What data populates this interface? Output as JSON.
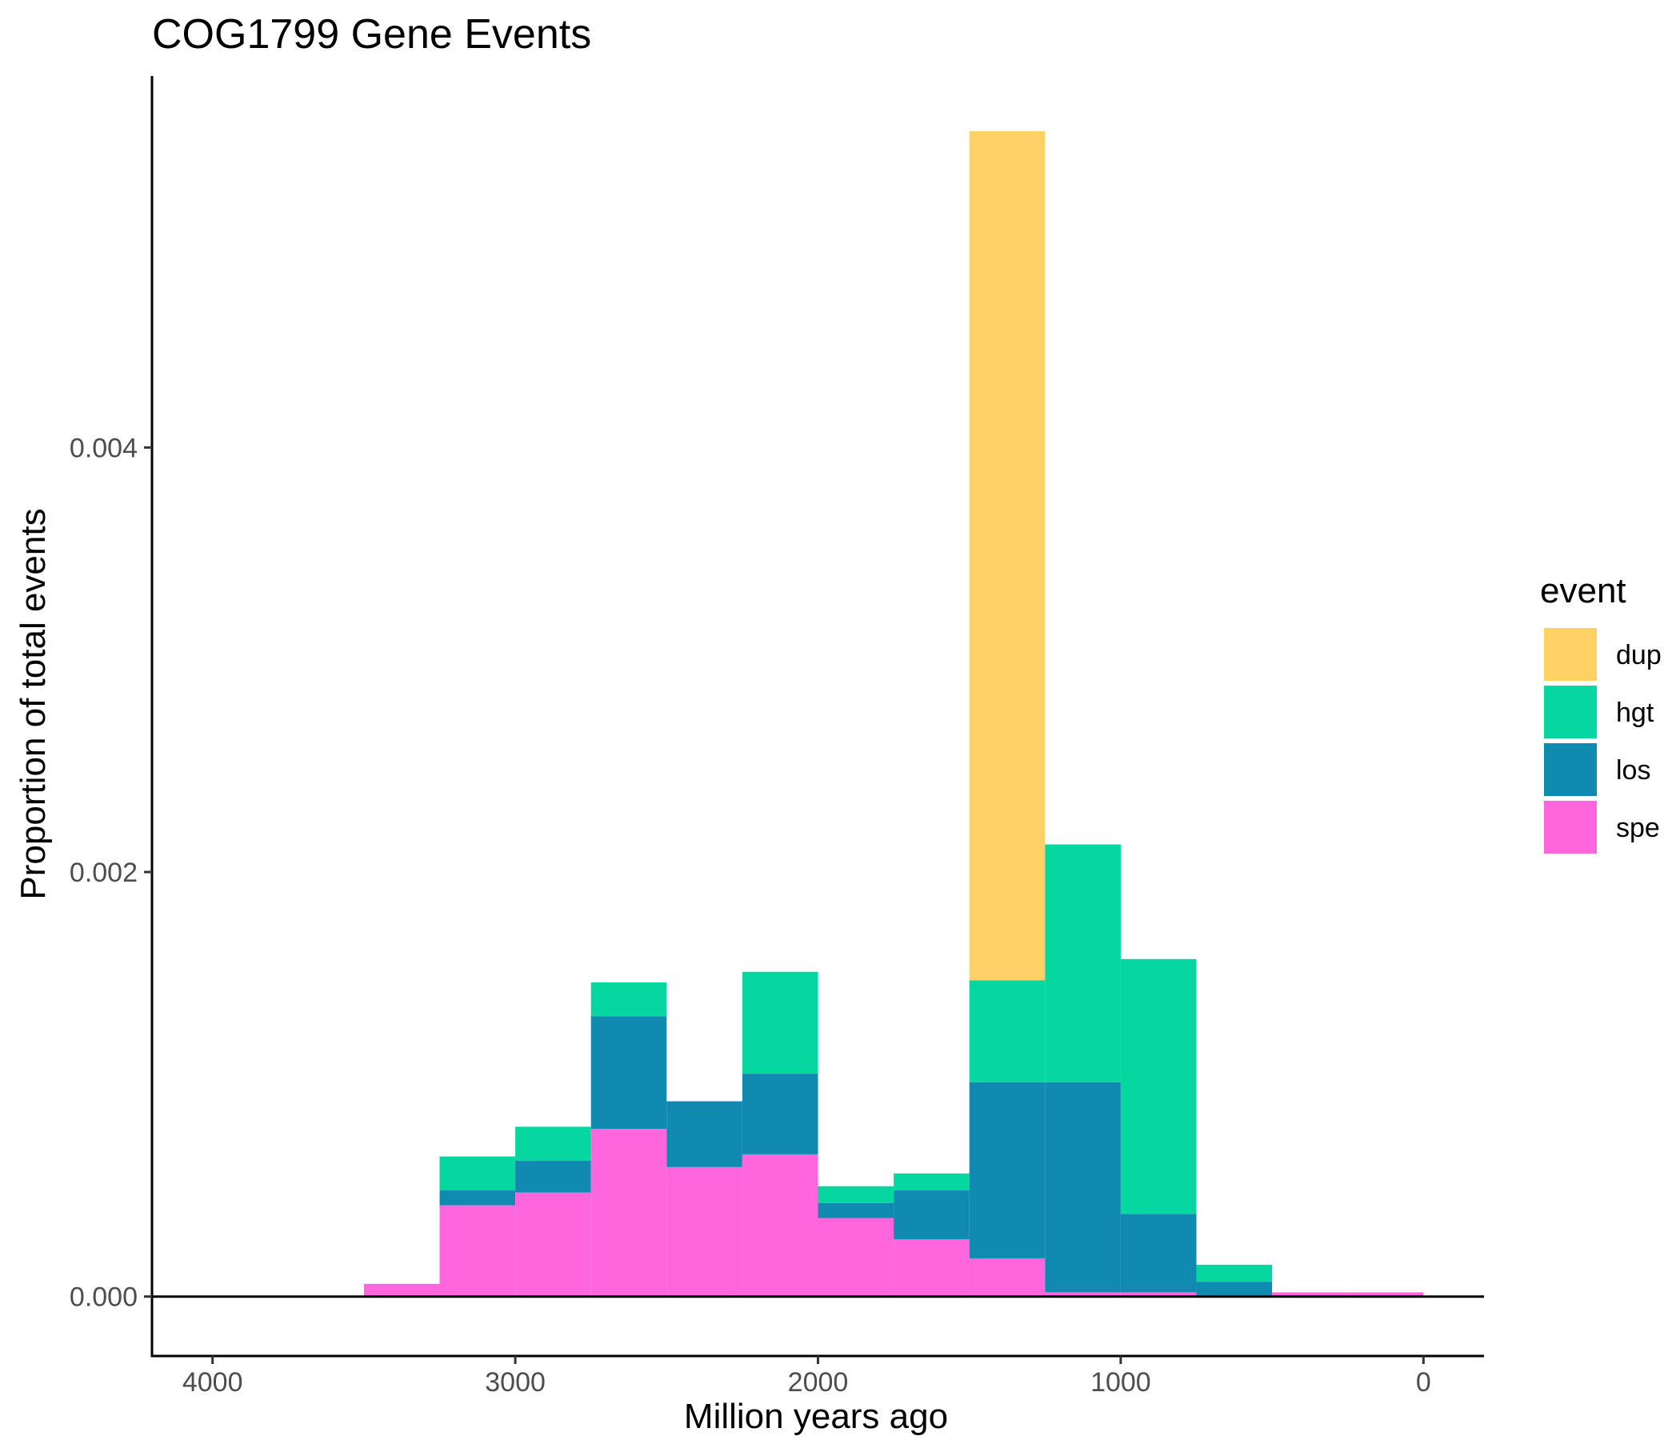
{
  "chart_data": {
    "type": "bar",
    "stacked": true,
    "title": "COG1799 Gene Events",
    "xlabel": "Million years ago",
    "ylabel": "Proportion of total events",
    "x_reversed": true,
    "xlim": [
      4200,
      -200
    ],
    "ylim": [
      -0.00028,
      0.00575
    ],
    "xticks": [
      4000,
      3000,
      2000,
      1000,
      0
    ],
    "xtick_labels": [
      "4000",
      "3000",
      "2000",
      "1000",
      "0"
    ],
    "yticks": [
      0.0,
      0.002,
      0.004
    ],
    "ytick_labels": [
      "0.000",
      "0.002",
      "0.004"
    ],
    "bin_width": 250,
    "bin_centers": [
      3375,
      3125,
      2875,
      2625,
      2375,
      2125,
      1875,
      1625,
      1375,
      1125,
      875,
      625,
      375,
      125
    ],
    "legend": {
      "title": "event",
      "position": "right"
    },
    "zero_line": true,
    "series": [
      {
        "name": "spe",
        "color": "#FF66DD",
        "values": [
          6e-05,
          0.00043,
          0.00049,
          0.00079,
          0.00061,
          0.00067,
          0.00037,
          0.00027,
          0.00018,
          2e-05,
          2e-05,
          0.0,
          2e-05,
          2e-05
        ]
      },
      {
        "name": "los",
        "color": "#118AB2",
        "values": [
          0.0,
          7e-05,
          0.00015,
          0.00053,
          0.00031,
          0.00038,
          7e-05,
          0.00023,
          0.00083,
          0.00099,
          0.00037,
          7e-05,
          0.0,
          0.0
        ]
      },
      {
        "name": "hgt",
        "color": "#06D6A0",
        "values": [
          0.0,
          0.00016,
          0.00016,
          0.00016,
          0.0,
          0.00048,
          8e-05,
          8e-05,
          0.00048,
          0.00112,
          0.0012,
          8e-05,
          0.0,
          0.0
        ]
      },
      {
        "name": "dup",
        "color": "#FFD166",
        "values": [
          0.0,
          0.0,
          0.0,
          0.0,
          0.0,
          0.0,
          0.0,
          0.0,
          0.004,
          0.0,
          0.0,
          0.0,
          0.0,
          0.0
        ]
      }
    ],
    "legend_order": [
      "dup",
      "hgt",
      "los",
      "spe"
    ]
  }
}
